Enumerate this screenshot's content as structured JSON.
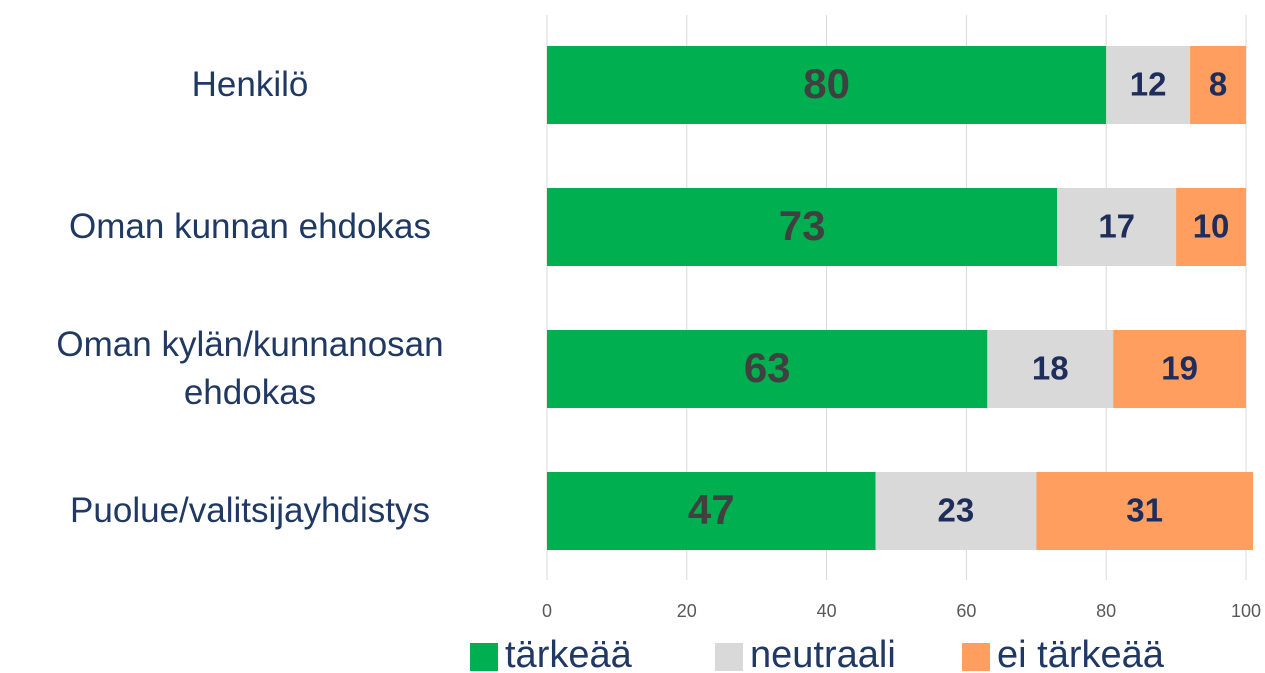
{
  "chart_data": {
    "type": "stacked_barh",
    "categories": [
      "Henkilö",
      "Oman kunnan ehdokas",
      "Oman kylän/kunnanosan ehdokas",
      "Puolue/valitsijayhdistys"
    ],
    "series": [
      {
        "name": "tärkeää",
        "color": "#00b050",
        "values": [
          80,
          73,
          63,
          47
        ]
      },
      {
        "name": "neutraali",
        "color": "#d9d9d9",
        "values": [
          12,
          17,
          18,
          23
        ]
      },
      {
        "name": "ei tärkeää",
        "color": "#ff9e5e",
        "values": [
          8,
          10,
          19,
          31
        ]
      }
    ],
    "xlim": [
      0,
      100
    ],
    "xticks": [
      0,
      20,
      40,
      60,
      80,
      100
    ],
    "grid": true,
    "legend": "bottom"
  }
}
